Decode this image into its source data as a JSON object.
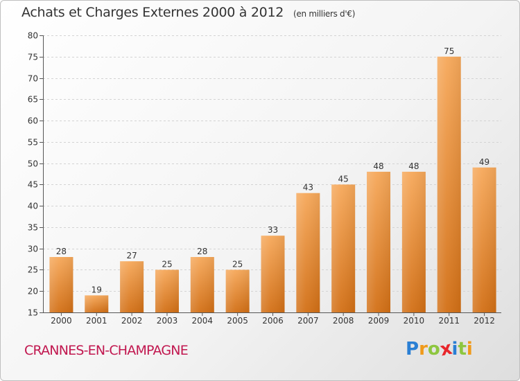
{
  "title": "Achats et Charges Externes 2000 à 2012",
  "unit_note": "(en milliers d'€)",
  "town_name": "CRANNES-EN-CHAMPAGNE",
  "logo": {
    "letters": [
      "P",
      "r",
      "o",
      "x",
      "i",
      "t",
      "i"
    ],
    "colors": [
      "#2a7fd4",
      "#f09a1a",
      "#8dc63f",
      "#e8262b",
      "#2a7fd4",
      "#8dc63f",
      "#f09a1a"
    ]
  },
  "colors": {
    "bar_top": "#f6a85a",
    "bar_bottom": "#d26f15",
    "town": "#c1174f",
    "grid": "#d3d3d3",
    "axis_text": "#333333"
  },
  "chart_data": {
    "type": "bar",
    "categories": [
      "2000",
      "2001",
      "2002",
      "2003",
      "2004",
      "2005",
      "2006",
      "2007",
      "2008",
      "2009",
      "2010",
      "2011",
      "2012"
    ],
    "values": [
      28,
      19,
      27,
      25,
      28,
      25,
      33,
      43,
      45,
      48,
      48,
      75,
      49
    ],
    "title": "Achats et Charges Externes 2000 à 2012",
    "xlabel": "",
    "ylabel": "",
    "ylim": [
      15,
      80
    ],
    "yticks": [
      15,
      20,
      25,
      30,
      35,
      40,
      45,
      50,
      55,
      60,
      65,
      70,
      75,
      80
    ],
    "grid": true,
    "data_labels": true
  }
}
